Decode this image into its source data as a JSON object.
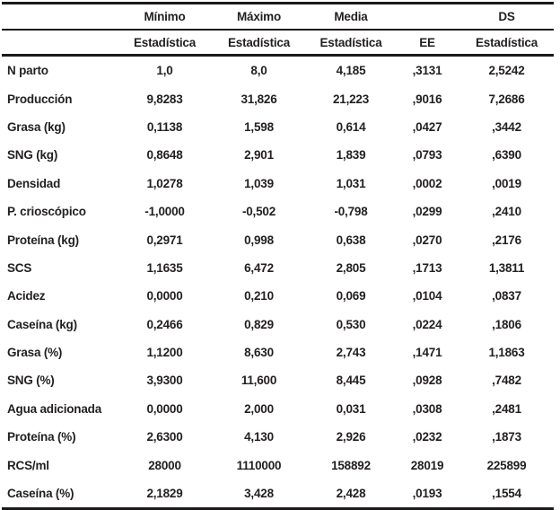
{
  "table": {
    "group_headers": {
      "label": "",
      "minimo": "Mínimo",
      "maximo": "Máximo",
      "media": "Media",
      "ee": "",
      "ds": "DS"
    },
    "stat_headers": {
      "label": "",
      "minimo": "Estadística",
      "maximo": "Estadística",
      "media": "Estadística",
      "ee": "EE",
      "ds": "Estadística"
    },
    "rows": [
      {
        "label": "N parto",
        "minimo": "1,0",
        "maximo": "8,0",
        "media": "4,185",
        "ee": ",3131",
        "ds": "2,5242"
      },
      {
        "label": "Producción",
        "minimo": "9,8283",
        "maximo": "31,826",
        "media": "21,223",
        "ee": ",9016",
        "ds": "7,2686"
      },
      {
        "label": "Grasa (kg)",
        "minimo": "0,1138",
        "maximo": "1,598",
        "media": "0,614",
        "ee": ",0427",
        "ds": ",3442"
      },
      {
        "label": "SNG (kg)",
        "minimo": "0,8648",
        "maximo": "2,901",
        "media": "1,839",
        "ee": ",0793",
        "ds": ",6390"
      },
      {
        "label": "Densidad",
        "minimo": "1,0278",
        "maximo": "1,039",
        "media": "1,031",
        "ee": ",0002",
        "ds": ",0019"
      },
      {
        "label": "P. crioscópico",
        "minimo": "-1,0000",
        "maximo": "-0,502",
        "media": "-0,798",
        "ee": ",0299",
        "ds": ",2410"
      },
      {
        "label": "Proteína (kg)",
        "minimo": "0,2971",
        "maximo": "0,998",
        "media": "0,638",
        "ee": ",0270",
        "ds": ",2176"
      },
      {
        "label": "SCS",
        "minimo": "1,1635",
        "maximo": "6,472",
        "media": "2,805",
        "ee": ",1713",
        "ds": "1,3811"
      },
      {
        "label": "Acidez",
        "minimo": "0,0000",
        "maximo": "0,210",
        "media": "0,069",
        "ee": ",0104",
        "ds": ",0837"
      },
      {
        "label": "Caseína (kg)",
        "minimo": "0,2466",
        "maximo": "0,829",
        "media": "0,530",
        "ee": ",0224",
        "ds": ",1806"
      },
      {
        "label": "Grasa (%)",
        "minimo": "1,1200",
        "maximo": "8,630",
        "media": "2,743",
        "ee": ",1471",
        "ds": "1,1863"
      },
      {
        "label": "SNG (%)",
        "minimo": "3,9300",
        "maximo": "11,600",
        "media": "8,445",
        "ee": ",0928",
        "ds": ",7482"
      },
      {
        "label": "Agua adicionada",
        "minimo": "0,0000",
        "maximo": "2,000",
        "media": "0,031",
        "ee": ",0308",
        "ds": ",2481"
      },
      {
        "label": "Proteína (%)",
        "minimo": "2,6300",
        "maximo": "4,130",
        "media": "2,926",
        "ee": ",0232",
        "ds": ",1873"
      },
      {
        "label": "RCS/ml",
        "minimo": "28000",
        "maximo": "1110000",
        "media": "158892",
        "ee": "28019",
        "ds": "225899"
      },
      {
        "label": "Caseína (%)",
        "minimo": "2,1829",
        "maximo": "3,428",
        "media": "2,428",
        "ee": ",0193",
        "ds": ",1554"
      }
    ]
  }
}
